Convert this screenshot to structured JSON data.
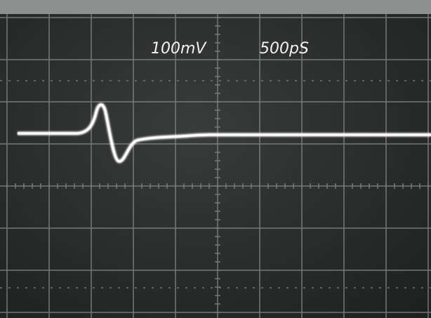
{
  "scope": {
    "volts_per_div": "100mV",
    "time_per_div": "500pS"
  }
}
